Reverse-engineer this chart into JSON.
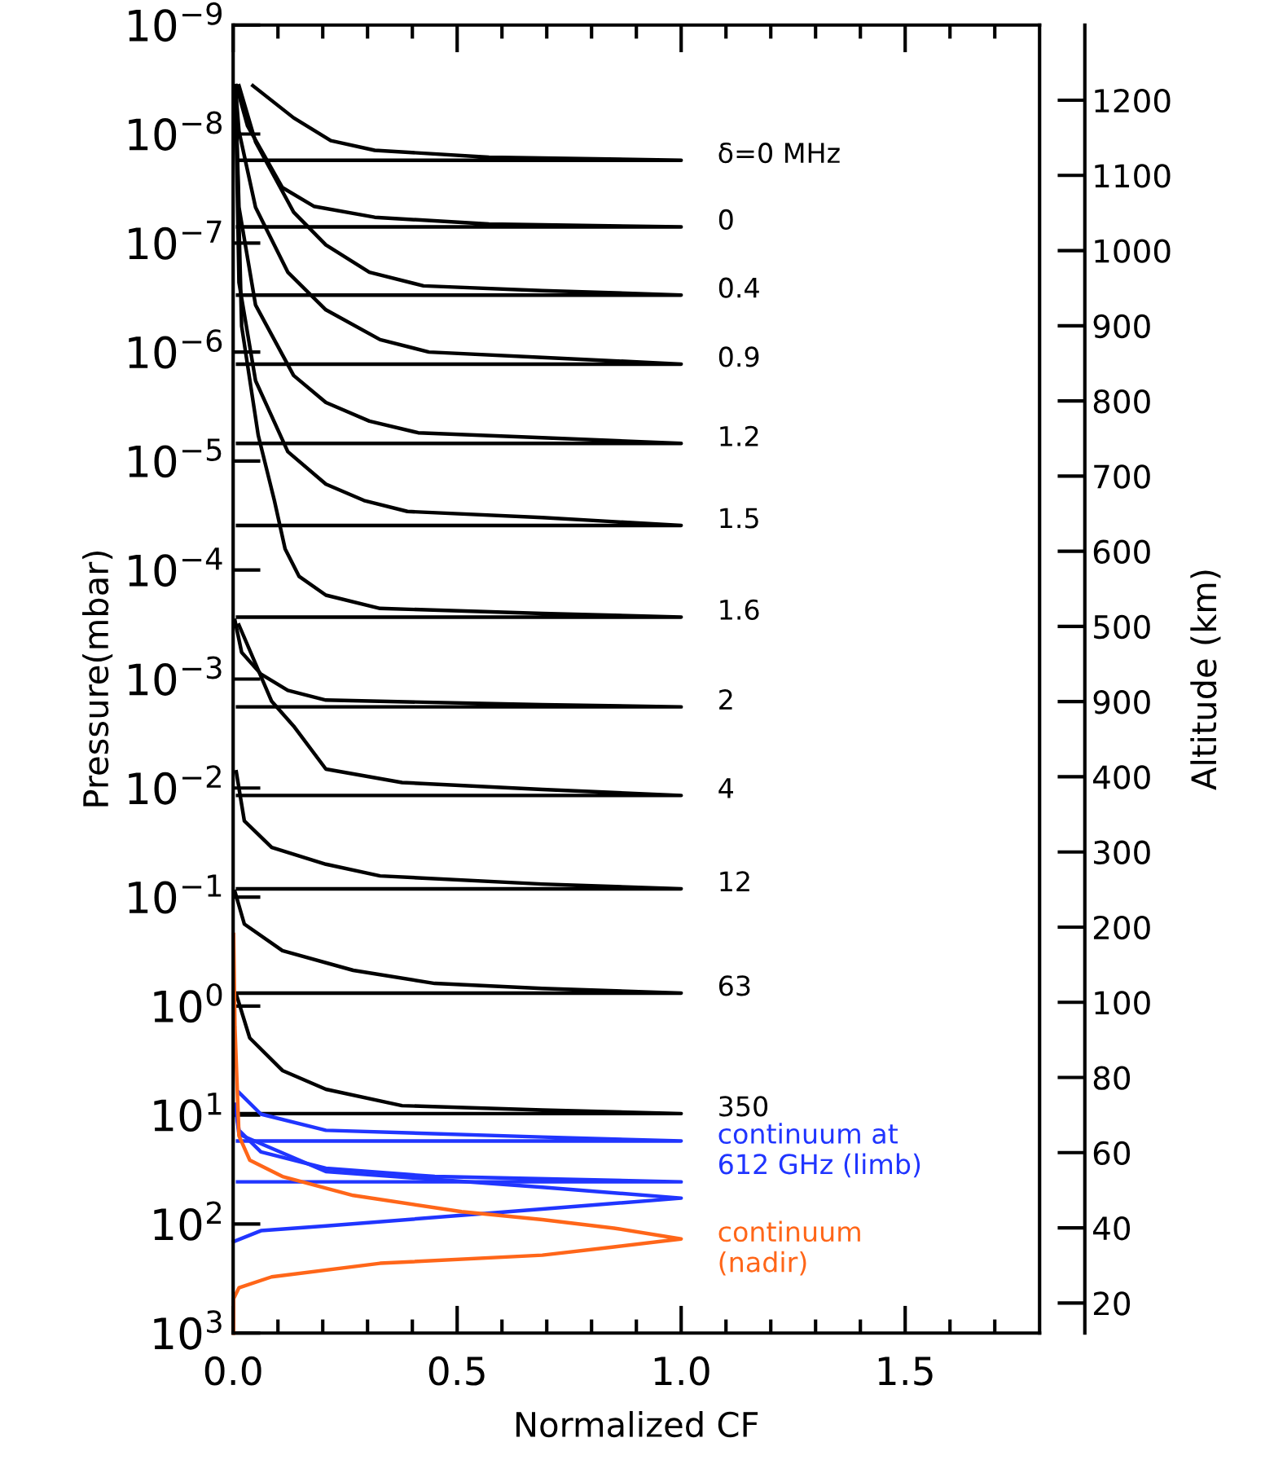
{
  "chart_data": {
    "type": "line",
    "xlabel": "Normalized CF",
    "ylabel": "Pressure(mbar)",
    "y2label": "Altitude (km)",
    "log": true,
    "xlim": [
      0,
      1.8
    ],
    "xticks": [
      {
        "value": 0,
        "label": "0.0"
      },
      {
        "value": 0.1,
        "label": null
      },
      {
        "value": 0.2,
        "label": null
      },
      {
        "value": 0.3,
        "label": null
      },
      {
        "value": 0.4,
        "label": null
      },
      {
        "value": 0.5,
        "label": "0.5"
      },
      {
        "value": 0.6,
        "label": null
      },
      {
        "value": 0.7,
        "label": null
      },
      {
        "value": 0.8,
        "label": null
      },
      {
        "value": 0.9,
        "label": null
      },
      {
        "value": 1.0,
        "label": "1.0"
      },
      {
        "value": 1.1,
        "label": null
      },
      {
        "value": 1.2,
        "label": null
      },
      {
        "value": 1.3,
        "label": null
      },
      {
        "value": 1.4,
        "label": null
      },
      {
        "value": 1.5,
        "label": "1.5"
      },
      {
        "value": 1.6,
        "label": null
      },
      {
        "value": 1.7,
        "label": null
      }
    ],
    "ylim": [
      1000,
      1e-09
    ],
    "yticks": [
      {
        "value": 1e-09,
        "label": "10$^{−9}$"
      },
      {
        "value": 1e-08,
        "label": "10$^{−8}$"
      },
      {
        "value": 1e-07,
        "label": "10$^{−7}$"
      },
      {
        "value": 1e-06,
        "label": "10$^{−6}$"
      },
      {
        "value": 1e-05,
        "label": "10$^{−5}$"
      },
      {
        "value": 0.0001,
        "label": "10$^{−4}$"
      },
      {
        "value": 0.001,
        "label": "10$^{−3}$"
      },
      {
        "value": 0.01,
        "label": "10$^{−2}$"
      },
      {
        "value": 0.1,
        "label": "10$^{−1}$"
      },
      {
        "value": 1,
        "label": "10$^{0}$"
      },
      {
        "value": 10,
        "label": "10$^{1}$"
      },
      {
        "value": 100,
        "label": "10$^{2}$"
      },
      {
        "value": 1000,
        "label": "10$^{3}$"
      }
    ],
    "y2_categories": [
      "1200",
      "1100",
      "1000",
      "900",
      "800",
      "700",
      "600",
      "500",
      "900",
      "400",
      "300",
      "200",
      "100",
      "80",
      "60",
      "40",
      "20"
    ],
    "series": [
      {
        "name": "δ=0 MHz",
        "color": "#000000",
        "x": [
          0.044,
          0.135,
          0.218,
          0.316,
          0.571,
          1.0,
          0.01
        ],
        "values": [
          3.6e-09,
          7.1e-09,
          1.15e-08,
          1.41e-08,
          1.63e-08,
          1.74e-08,
          1.74e-08
        ]
      },
      {
        "name": "0",
        "color": "#000000",
        "x": [
          0.007,
          0.032,
          0.11,
          0.18,
          0.316,
          0.571,
          1.0,
          0.01
        ],
        "values": [
          3.6e-09,
          8.4e-09,
          3.1e-08,
          4.6e-08,
          5.8e-08,
          6.7e-08,
          7.1e-08,
          7.1e-08
        ]
      },
      {
        "name": "0.4",
        "color": "#000000",
        "x": [
          0.013,
          0.05,
          0.135,
          0.207,
          0.304,
          0.425,
          0.69,
          1.0,
          0.01
        ],
        "values": [
          3.6e-09,
          1.18e-08,
          5.2e-08,
          1.04e-07,
          1.85e-07,
          2.47e-07,
          2.73e-07,
          3e-07,
          3e-07
        ]
      },
      {
        "name": "0.9",
        "color": "#000000",
        "x": [
          0.005,
          0.013,
          0.05,
          0.122,
          0.207,
          0.328,
          0.437,
          0.69,
          1.0,
          0.01
        ],
        "values": [
          3.6e-09,
          9.4e-09,
          4.7e-08,
          1.85e-07,
          4.1e-07,
          7.7e-07,
          1e-06,
          1.12e-06,
          1.29e-06,
          1.29e-06
        ]
      },
      {
        "name": "1.2",
        "color": "#000000",
        "x": [
          0.005,
          0.013,
          0.05,
          0.135,
          0.207,
          0.304,
          0.413,
          0.69,
          1.0,
          0.01
        ],
        "values": [
          3.6e-09,
          4.7e-08,
          3.7e-07,
          1.64e-06,
          2.9e-06,
          4.3e-06,
          5.5e-06,
          6.1e-06,
          6.9e-06,
          6.9e-06
        ]
      },
      {
        "name": "1.5",
        "color": "#000000",
        "x": [
          0.005,
          0.013,
          0.05,
          0.122,
          0.207,
          0.292,
          0.389,
          0.69,
          1.0,
          0.01
        ],
        "values": [
          3.6e-09,
          2.3e-07,
          1.83e-06,
          8.2e-06,
          1.63e-05,
          2.3e-05,
          2.9e-05,
          3.3e-05,
          3.9e-05,
          3.9e-05
        ]
      },
      {
        "name": "1.6",
        "color": "#000000",
        "x": [
          0.005,
          0.019,
          0.056,
          0.092,
          0.116,
          0.147,
          0.207,
          0.328,
          0.69,
          1.0,
          0.01
        ],
        "values": [
          3.6e-09,
          5.8e-07,
          5.8e-06,
          2.3e-05,
          6.4e-05,
          0.000114,
          0.00017,
          0.000225,
          0.00025,
          0.00027,
          0.00027
        ]
      },
      {
        "name": "2",
        "color": "#000000",
        "x": [
          0.004,
          0.019,
          0.062,
          0.122,
          0.207,
          0.69,
          1.0,
          0.01
        ],
        "values": [
          0.00029,
          0.00057,
          0.0009,
          0.00127,
          0.00156,
          0.00172,
          0.0018,
          0.0018
        ]
      },
      {
        "name": "4",
        "color": "#000000",
        "x": [
          0.013,
          0.086,
          0.135,
          0.207,
          0.377,
          0.69,
          1.0,
          0.01
        ],
        "values": [
          0.00032,
          0.0016,
          0.0027,
          0.0067,
          0.0089,
          0.0103,
          0.0117,
          0.0117
        ]
      },
      {
        "name": "12",
        "color": "#000000",
        "x": [
          0.007,
          0.025,
          0.086,
          0.207,
          0.328,
          0.69,
          1.0,
          0.01
        ],
        "values": [
          0.0071,
          0.02,
          0.035,
          0.05,
          0.064,
          0.076,
          0.084,
          0.084
        ]
      },
      {
        "name": "63",
        "color": "#000000",
        "x": [
          0.004,
          0.025,
          0.11,
          0.268,
          0.45,
          0.69,
          1.0,
          0.01
        ],
        "values": [
          0.089,
          0.177,
          0.31,
          0.47,
          0.62,
          0.69,
          0.76,
          0.76
        ]
      },
      {
        "name": "350",
        "color": "#000000",
        "x": [
          0.007,
          0.037,
          0.11,
          0.207,
          0.377,
          0.69,
          1.0,
          0.01
        ],
        "values": [
          0.78,
          1.96,
          3.9,
          5.8,
          8.2,
          9.0,
          9.7,
          9.7
        ]
      },
      {
        "name": "continuum at\n612 GHz (limb)",
        "color": "#2035ff",
        "x": [
          0.013,
          0.062,
          0.207,
          0.69,
          1.0,
          0.01
        ],
        "values": [
          6.2,
          9.8,
          13.8,
          15.9,
          17.3,
          17.3
        ]
      },
      {
        "color": "#2035ff",
        "x": [
          0.005,
          0.013,
          0.062,
          0.207,
          0.45,
          1.0,
          0.01
        ],
        "values": [
          8.0,
          13.8,
          21.8,
          30.8,
          36.6,
          41.0,
          41.0
        ]
      },
      {
        "color": "#2035ff",
        "x": [
          0.005,
          0.013,
          0.207,
          0.69,
          1.0,
          0.69,
          0.207,
          0.062,
          0.001
        ],
        "values": [
          8.0,
          15.0,
          33.0,
          45.9,
          57.8,
          72.8,
          104,
          115,
          145
        ]
      },
      {
        "name": "continuum\n(nadir)",
        "color": "#ff6619",
        "x": [
          0.001,
          0.004,
          0.013,
          0.037,
          0.11,
          0.268,
          0.51,
          0.69,
          0.85,
          1.0,
          0.85,
          0.69,
          0.328,
          0.086,
          0.013,
          0.001,
          0.001
        ],
        "values": [
          0.22,
          1.56,
          15.5,
          25.9,
          36.6,
          54.6,
          77,
          91,
          109,
          137,
          162,
          193,
          229,
          305,
          384,
          483,
          1000
        ]
      }
    ]
  }
}
